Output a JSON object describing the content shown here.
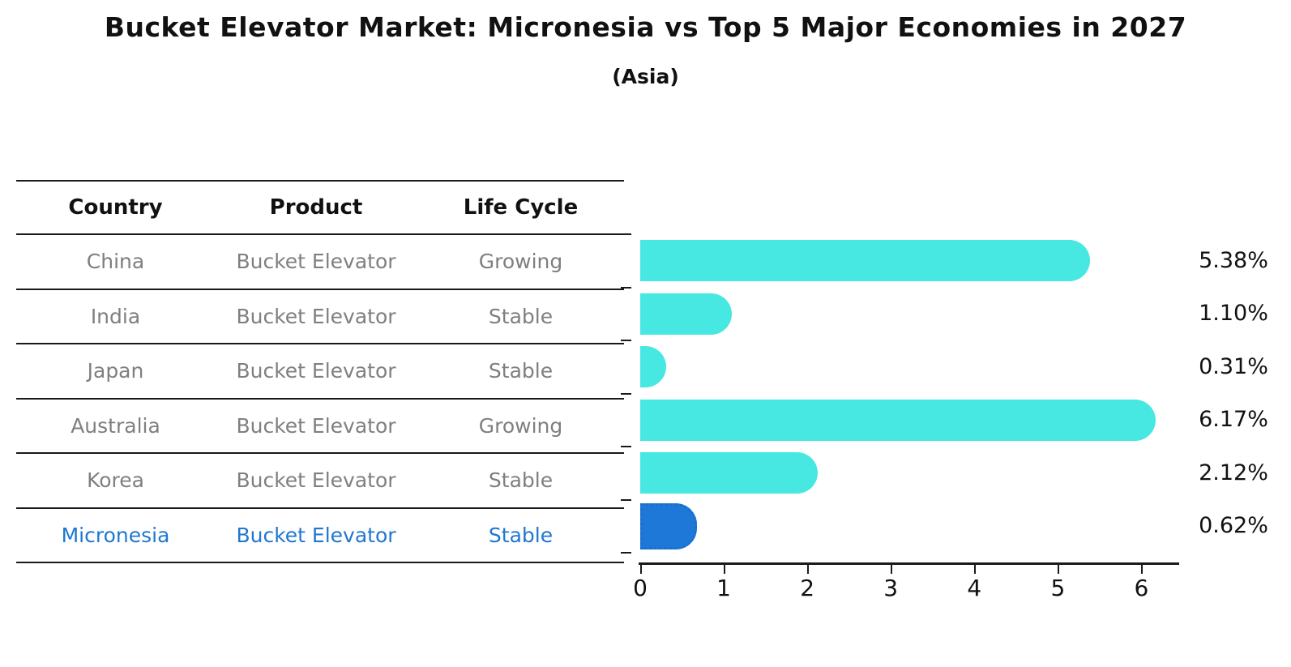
{
  "title": "Bucket Elevator Market: Micronesia vs Top 5 Major Economies in 2027",
  "subtitle": "(Asia)",
  "table": {
    "headers": [
      "Country",
      "Product",
      "Life Cycle"
    ],
    "rows": [
      {
        "country": "China",
        "product": "Bucket Elevator",
        "life_cycle": "Growing",
        "highlight": false
      },
      {
        "country": "India",
        "product": "Bucket Elevator",
        "life_cycle": "Stable",
        "highlight": false
      },
      {
        "country": "Japan",
        "product": "Bucket Elevator",
        "life_cycle": "Stable",
        "highlight": false
      },
      {
        "country": "Australia",
        "product": "Bucket Elevator",
        "life_cycle": "Growing",
        "highlight": false
      },
      {
        "country": "Korea",
        "product": "Bucket Elevator",
        "life_cycle": "Stable",
        "highlight": false
      },
      {
        "country": "Micronesia",
        "product": "Bucket Elevator",
        "life_cycle": "Stable",
        "highlight": true
      }
    ]
  },
  "chart_data": {
    "type": "bar",
    "orientation": "horizontal",
    "title": "Bucket Elevator Market: Micronesia vs Top 5 Major Economies in 2027 (Asia)",
    "categories": [
      "China",
      "India",
      "Japan",
      "Australia",
      "Korea",
      "Micronesia"
    ],
    "values": [
      5.38,
      1.1,
      0.31,
      6.17,
      2.12,
      0.62
    ],
    "value_labels": [
      "5.38%",
      "1.10%",
      "0.31%",
      "6.17%",
      "2.12%",
      "0.62%"
    ],
    "highlight_index": 5,
    "x_ticks": [
      "0",
      "1",
      "2",
      "3",
      "4",
      "5",
      "6"
    ],
    "xlim": [
      0,
      6.5
    ],
    "xlabel": "",
    "ylabel": "",
    "grid": false,
    "legend": false,
    "bar_color": "#46e8e1",
    "highlight_color": "#1e78d7",
    "highlight_border_color": "#1a6fcc",
    "highlight_text_color": "#1f77d0",
    "body_text_color": "#7f7f7f"
  }
}
